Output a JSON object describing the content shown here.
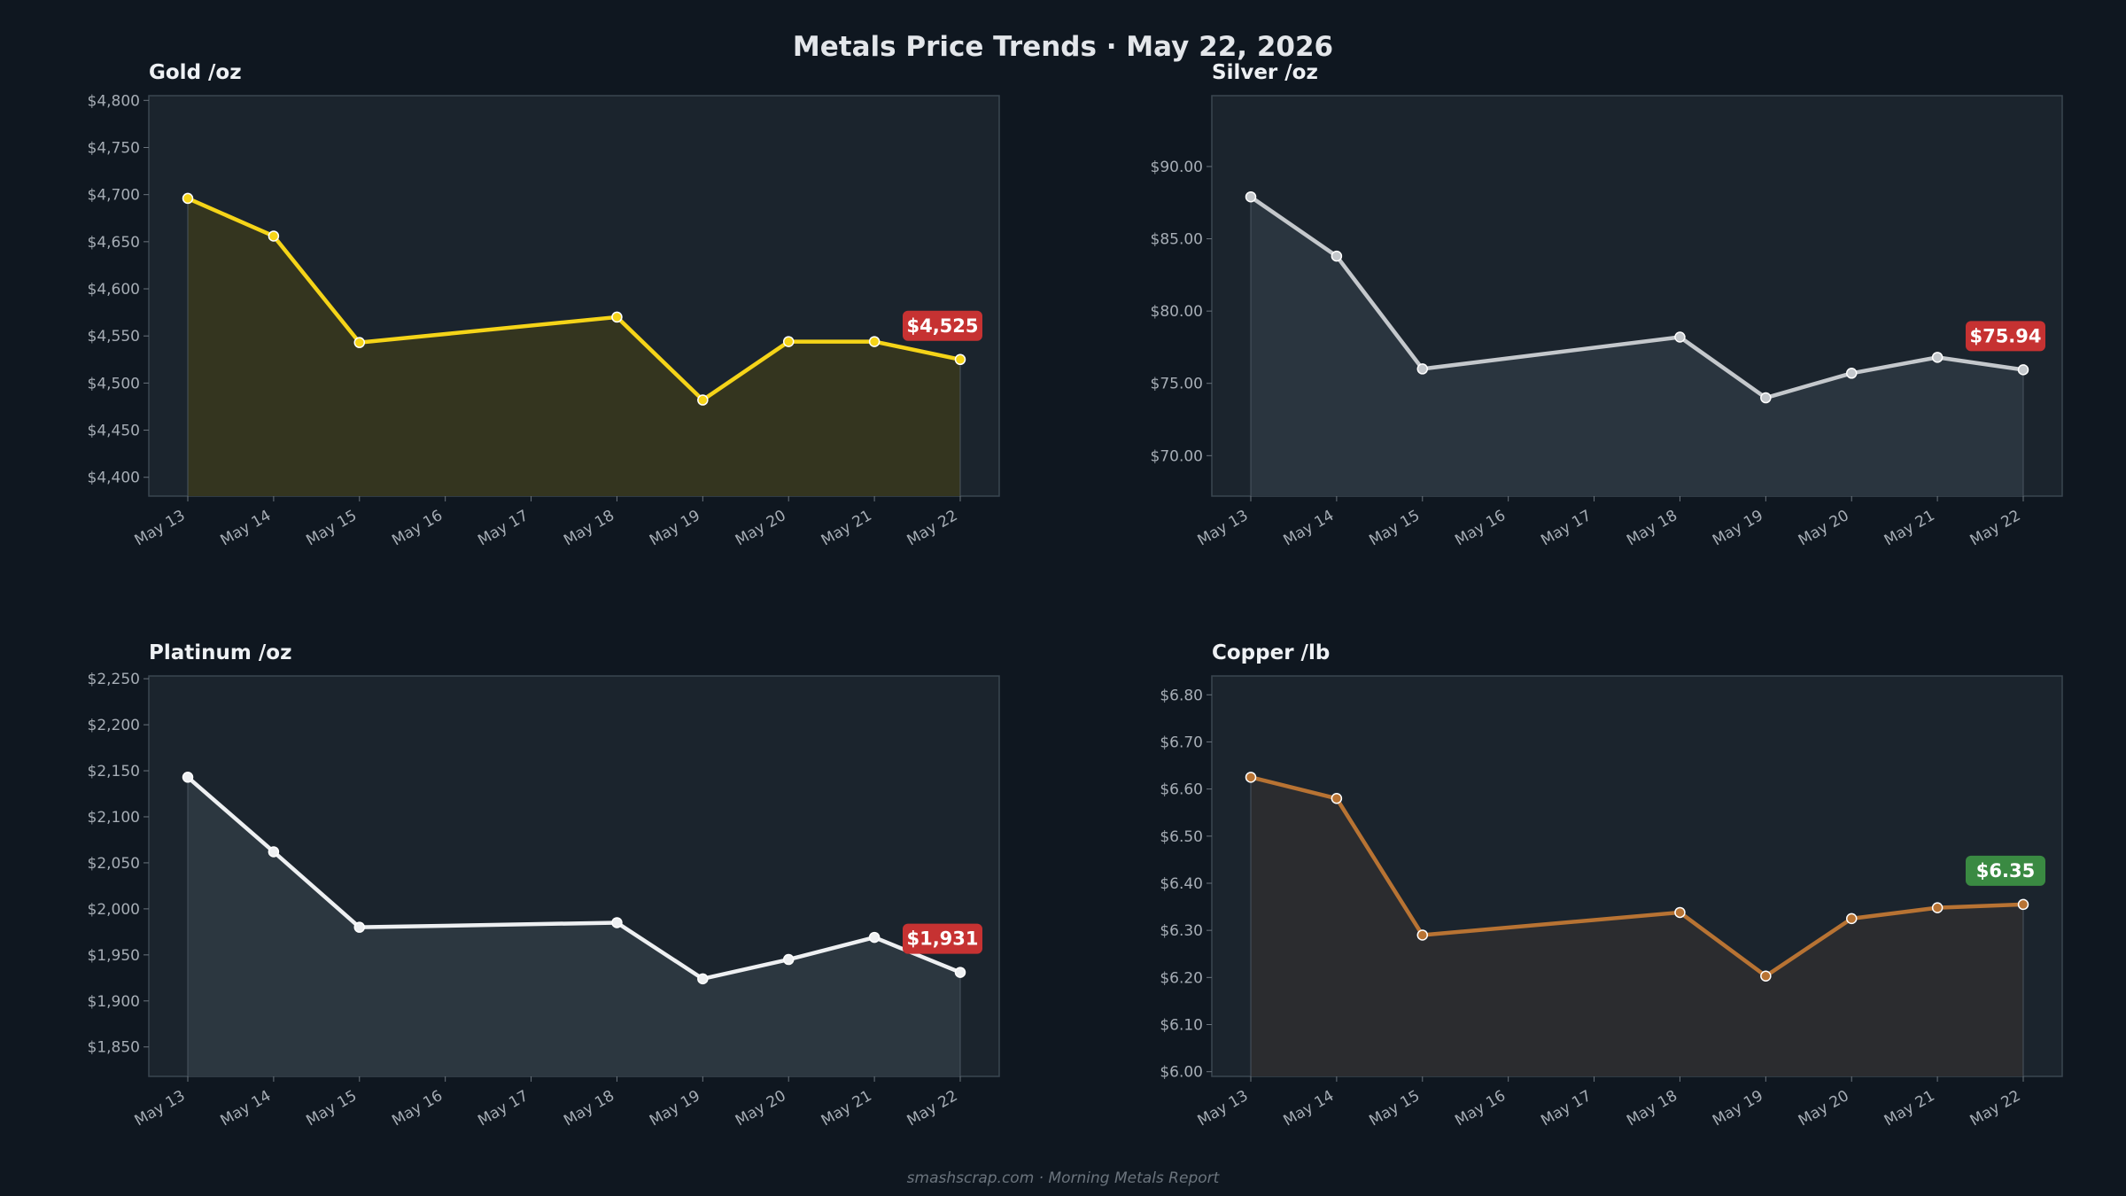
{
  "header": {
    "title": "Metals Price Trends  ·  May 22, 2026"
  },
  "footer": {
    "text": "smashscrap.com  ·  Morning Metals Report"
  },
  "chart_data": [
    {
      "type": "line",
      "title": "Gold  /oz",
      "categories": [
        "May 13",
        "May 14",
        "May 15",
        "May 16",
        "May 17",
        "May 18",
        "May 19",
        "May 20",
        "May 21",
        "May 22"
      ],
      "points": [
        [
          "May 13",
          4696
        ],
        [
          "May 14",
          4656
        ],
        [
          "May 15",
          4543
        ],
        [
          "May 18",
          4570
        ],
        [
          "May 19",
          4482
        ],
        [
          "May 20",
          4544
        ],
        [
          "May 21",
          4544
        ],
        [
          "May 22",
          4525
        ]
      ],
      "ylim": [
        4380,
        4805
      ],
      "yticks": [
        4400,
        4450,
        4500,
        4550,
        4600,
        4650,
        4700,
        4750,
        4800
      ],
      "ytick_labels": [
        "$4,400",
        "$4,450",
        "$4,500",
        "$4,550",
        "$4,600",
        "$4,650",
        "$4,700",
        "$4,750",
        "$4,800"
      ],
      "badge": "$4,525",
      "colors": {
        "line": "#f5d418",
        "fill": "#34351f",
        "badge": "#c63232"
      }
    },
    {
      "type": "line",
      "title": "Silver  /oz",
      "categories": [
        "May 13",
        "May 14",
        "May 15",
        "May 16",
        "May 17",
        "May 18",
        "May 19",
        "May 20",
        "May 21",
        "May 22"
      ],
      "points": [
        [
          "May 13",
          87.9
        ],
        [
          "May 14",
          83.8
        ],
        [
          "May 15",
          76.0
        ],
        [
          "May 18",
          78.2
        ],
        [
          "May 19",
          74.0
        ],
        [
          "May 20",
          75.7
        ],
        [
          "May 21",
          76.8
        ],
        [
          "May 22",
          75.94
        ]
      ],
      "ylim": [
        67.2,
        94.9
      ],
      "yticks": [
        70,
        75,
        80,
        85,
        90
      ],
      "ytick_labels": [
        "$70.00",
        "$75.00",
        "$80.00",
        "$85.00",
        "$90.00"
      ],
      "badge": "$75.94",
      "colors": {
        "line": "#c4c8cc",
        "fill": "#2a353f",
        "badge": "#c63232"
      }
    },
    {
      "type": "line",
      "title": "Platinum  /oz",
      "categories": [
        "May 13",
        "May 14",
        "May 15",
        "May 16",
        "May 17",
        "May 18",
        "May 19",
        "May 20",
        "May 21",
        "May 22"
      ],
      "points": [
        [
          "May 13",
          2143
        ],
        [
          "May 14",
          2062
        ],
        [
          "May 15",
          1980
        ],
        [
          "May 18",
          1985
        ],
        [
          "May 19",
          1924
        ],
        [
          "May 20",
          1945
        ],
        [
          "May 21",
          1969
        ],
        [
          "May 22",
          1931
        ]
      ],
      "ylim": [
        1818,
        2253
      ],
      "yticks": [
        1850,
        1900,
        1950,
        2000,
        2050,
        2100,
        2150,
        2200,
        2250
      ],
      "ytick_labels": [
        "$1,850",
        "$1,900",
        "$1,950",
        "$2,000",
        "$2,050",
        "$2,100",
        "$2,150",
        "$2,200",
        "$2,250"
      ],
      "badge": "$1,931",
      "colors": {
        "line": "#eef0f2",
        "fill": "#2c3740",
        "badge": "#c63232"
      }
    },
    {
      "type": "line",
      "title": "Copper  /lb",
      "categories": [
        "May 13",
        "May 14",
        "May 15",
        "May 16",
        "May 17",
        "May 18",
        "May 19",
        "May 20",
        "May 21",
        "May 22"
      ],
      "points": [
        [
          "May 13",
          6.625
        ],
        [
          "May 14",
          6.58
        ],
        [
          "May 15",
          6.29
        ],
        [
          "May 18",
          6.338
        ],
        [
          "May 19",
          6.203
        ],
        [
          "May 20",
          6.325
        ],
        [
          "May 21",
          6.348
        ],
        [
          "May 22",
          6.355
        ]
      ],
      "ylim": [
        5.99,
        6.84
      ],
      "yticks": [
        6.0,
        6.1,
        6.2,
        6.3,
        6.4,
        6.5,
        6.6,
        6.7,
        6.8
      ],
      "ytick_labels": [
        "$6.00",
        "$6.10",
        "$6.20",
        "$6.30",
        "$6.40",
        "$6.50",
        "$6.60",
        "$6.70",
        "$6.80"
      ],
      "badge": "$6.35",
      "colors": {
        "line": "#b87333",
        "fill": "#2b2c2f",
        "badge": "#3a8a42"
      }
    }
  ]
}
